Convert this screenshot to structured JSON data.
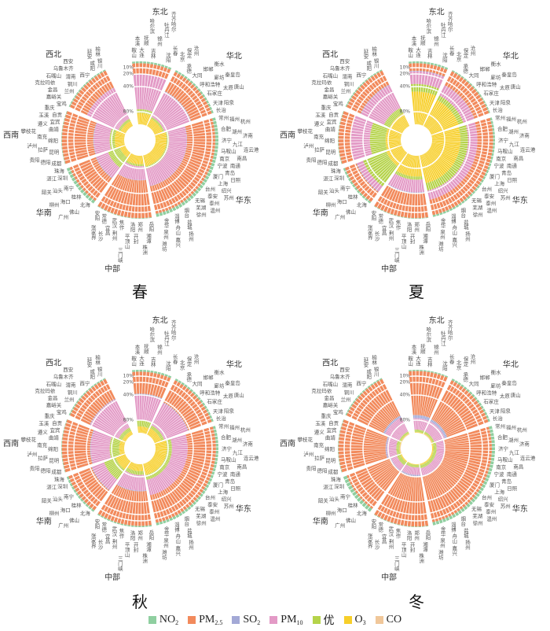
{
  "legend": [
    {
      "key": "NO2",
      "label": "NO",
      "sub": "2",
      "color": "#8fcfa0"
    },
    {
      "key": "PM2.5",
      "label": "PM",
      "sub": "2.5",
      "color": "#f28a5c"
    },
    {
      "key": "SO2",
      "label": "SO",
      "sub": "2",
      "color": "#a3a9d6"
    },
    {
      "key": "PM10",
      "label": "PM",
      "sub": "10",
      "color": "#e39ac6"
    },
    {
      "key": "优",
      "label": "优",
      "sub": "",
      "color": "#b5d34a"
    },
    {
      "key": "O3",
      "label": "O",
      "sub": "3",
      "color": "#f7cf2a"
    },
    {
      "key": "CO",
      "label": "CO",
      "sub": "",
      "color": "#f0c79a"
    }
  ],
  "radial_ticks": [
    "10%",
    "20%",
    "40%",
    "80%"
  ],
  "regions": [
    {
      "name": "东北",
      "cities": [
        "鞍山",
        "本溪",
        "大连",
        "抚顺",
        "哈尔滨",
        "吉林",
        "锦州",
        "牡丹江",
        "齐齐哈尔",
        "沈阳",
        "长春"
      ]
    },
    {
      "name": "华北",
      "cities": [
        "北京",
        "保定",
        "沧州",
        "承德",
        "大同",
        "邯郸",
        "衡水",
        "呼和浩特",
        "廊坊",
        "秦皇岛",
        "石家庄",
        "太原",
        "唐山",
        "天津",
        "阳泉",
        "长治"
      ]
    },
    {
      "name": "华东",
      "cities": [
        "常州",
        "福州",
        "杭州",
        "合肥",
        "湖州",
        "济南",
        "济宁",
        "九江",
        "连云港",
        "马鞍山",
        "南昌",
        "南京",
        "南通",
        "宁波",
        "青岛",
        "日照",
        "厦门",
        "上海",
        "绍兴",
        "苏州",
        "台州",
        "泰安",
        "泰州",
        "温州",
        "无锡",
        "芜湖",
        "徐州",
        "烟台",
        "盐城",
        "扬州",
        "淄博",
        "舟山",
        "嘉兴",
        "金华",
        "泉州",
        "潍坊"
      ]
    },
    {
      "name": "中部",
      "cities": [
        "岳阳",
        "湘潭",
        "株洲",
        "郑州",
        "开封",
        "洛阳",
        "平顶山",
        "三门峡",
        "焦作",
        "荆州",
        "武汉",
        "宜昌",
        "长沙",
        "常德",
        "张家界",
        "安阳"
      ]
    },
    {
      "name": "华南",
      "cities": [
        "北海",
        "佛山",
        "广州",
        "桂林",
        "海口",
        "柳州",
        "南宁",
        "汕头",
        "韶关",
        "深圳",
        "湛江",
        "珠海"
      ]
    },
    {
      "name": "西南",
      "cities": [
        "成都",
        "德阳",
        "贵阳",
        "昆明",
        "拉萨",
        "泸州",
        "绵阳",
        "南充",
        "攀枝花",
        "曲靖",
        "遵义",
        "宜宾",
        "玉溪",
        "自贡",
        "重庆"
      ]
    },
    {
      "name": "西北",
      "cities": [
        "宝鸡",
        "嘉峪关",
        "金昌",
        "克拉玛依",
        "兰州",
        "石嘴山",
        "铜川",
        "渭南",
        "乌鲁木齐",
        "西安",
        "西宁",
        "咸阳",
        "延安",
        "银川",
        "榆林"
      ]
    }
  ],
  "chart_data": [
    {
      "type": "bar",
      "stacked": true,
      "polar": true,
      "title": "春",
      "radial_range": [
        0,
        100
      ],
      "categories_order": [
        "NO2",
        "PM2.5",
        "SO2",
        "PM10",
        "优",
        "O3",
        "CO"
      ],
      "region_values": {
        "东北": [
          3,
          17,
          1,
          55,
          6,
          18,
          0
        ],
        "华北": [
          3,
          35,
          1,
          45,
          3,
          13,
          0
        ],
        "华东": [
          5,
          45,
          0.5,
          28,
          4,
          17.5,
          0
        ],
        "中部": [
          1,
          60,
          0.5,
          22,
          3,
          13.5,
          0
        ],
        "华南": [
          5,
          45,
          1,
          20,
          20,
          9,
          0
        ],
        "西南": [
          1,
          50,
          1,
          25,
          8,
          15,
          0
        ],
        "西北": [
          2,
          30,
          0.5,
          55,
          4,
          8.5,
          0
        ]
      }
    },
    {
      "type": "bar",
      "stacked": true,
      "polar": true,
      "title": "夏",
      "radial_range": [
        0,
        100
      ],
      "categories_order": [
        "NO2",
        "PM2.5",
        "SO2",
        "PM10",
        "优",
        "O3",
        "CO"
      ],
      "region_values": {
        "东北": [
          3,
          12,
          1,
          20,
          12,
          52,
          0
        ],
        "华北": [
          2,
          25,
          0.5,
          18,
          8,
          46.5,
          0
        ],
        "华东": [
          3,
          25,
          0,
          15,
          12,
          45,
          0
        ],
        "中部": [
          1,
          40,
          1,
          20,
          5,
          33,
          0
        ],
        "华南": [
          3,
          20,
          1,
          10,
          40,
          26,
          0
        ],
        "西南": [
          1,
          20,
          0,
          30,
          25,
          24,
          0
        ],
        "西北": [
          2,
          25,
          1,
          40,
          10,
          22,
          0
        ]
      }
    },
    {
      "type": "bar",
      "stacked": true,
      "polar": true,
      "title": "秋",
      "radial_range": [
        0,
        100
      ],
      "categories_order": [
        "NO2",
        "PM2.5",
        "SO2",
        "PM10",
        "优",
        "O3",
        "CO"
      ],
      "region_values": {
        "东北": [
          3,
          35,
          2,
          40,
          10,
          10,
          0
        ],
        "华北": [
          3,
          40,
          1,
          40,
          5,
          11,
          0
        ],
        "华东": [
          4,
          45,
          0,
          25,
          8,
          18,
          0
        ],
        "中部": [
          2,
          55,
          1,
          25,
          6,
          11,
          0
        ],
        "华南": [
          3,
          40,
          1,
          20,
          20,
          16,
          0
        ],
        "西南": [
          1,
          45,
          1,
          30,
          15,
          8,
          0
        ],
        "西北": [
          2,
          35,
          1,
          50,
          6,
          6,
          0
        ]
      }
    },
    {
      "type": "bar",
      "stacked": true,
      "polar": true,
      "title": "冬",
      "radial_range": [
        0,
        100
      ],
      "categories_order": [
        "NO2",
        "PM2.5",
        "SO2",
        "PM10",
        "优",
        "O3",
        "CO"
      ],
      "region_values": {
        "东北": [
          2,
          70,
          5,
          18,
          4,
          1,
          0
        ],
        "华北": [
          3,
          70,
          4,
          18,
          3,
          1,
          1
        ],
        "华东": [
          5,
          75,
          1,
          12,
          5,
          2,
          0
        ],
        "中部": [
          1,
          80,
          2,
          12,
          4,
          1,
          0
        ],
        "华南": [
          6,
          75,
          1,
          10,
          6,
          2,
          0
        ],
        "西南": [
          1,
          75,
          2,
          15,
          5,
          1,
          1
        ],
        "西北": [
          2,
          65,
          3,
          25,
          3,
          1,
          1
        ]
      }
    }
  ]
}
